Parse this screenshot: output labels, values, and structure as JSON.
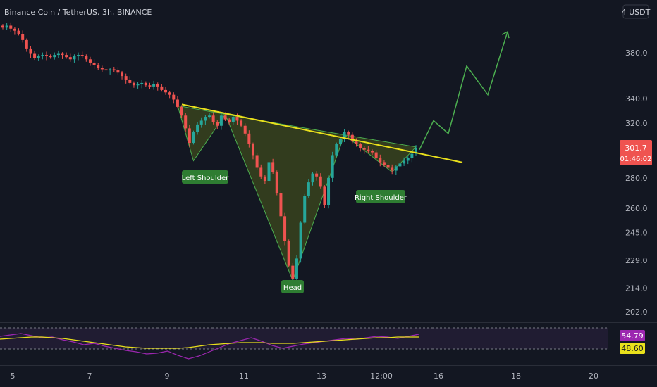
{
  "header": {
    "title": "Binance Coin / TetherUS, 3h, BINANCE",
    "currency": "4 USDT"
  },
  "price_tag": {
    "price": "301.7",
    "countdown": "01:46:02"
  },
  "rsi_tags": {
    "rsi": "54.79",
    "ma": "48.60"
  },
  "colors": {
    "background": "#131722",
    "up": "#26a69a",
    "down": "#ef5350",
    "neckline": "#e9e01c",
    "pattern_fill": "#3d4a1e",
    "pattern_stroke": "#4caf50",
    "projection": "#4caf50",
    "rsi_line": "#9c27b0",
    "rsi_ma": "#e9e01c",
    "label_bg": "#2e7d32"
  },
  "chart_data": {
    "type": "candlestick",
    "title": "Binance Coin / TetherUS, 3h, BINANCE",
    "y_axis": {
      "scale": "log",
      "ticks": [
        "380.0",
        "340.0",
        "320.0",
        "280.0",
        "260.0",
        "245.0",
        "229.0",
        "214.0",
        "202.0"
      ],
      "range": [
        195,
        420
      ]
    },
    "x_axis": {
      "ticks": [
        "5",
        "7",
        "9",
        "11",
        "13",
        "12:00",
        "16",
        "18",
        "20"
      ]
    },
    "series_closes_approx": [
      404,
      406,
      403,
      401,
      398,
      392,
      384,
      379,
      375,
      377,
      378,
      377,
      376,
      378,
      379,
      378,
      376,
      374,
      377,
      378,
      377,
      374,
      371,
      369,
      366,
      365,
      364,
      365,
      364,
      362,
      359,
      356,
      353,
      351,
      352,
      353,
      351,
      350,
      352,
      350,
      347,
      345,
      343,
      339,
      333,
      326,
      316,
      305,
      313,
      319,
      322,
      325,
      326,
      321,
      318,
      326,
      323,
      321,
      325,
      322,
      318,
      312,
      304,
      296,
      287,
      281,
      278,
      291,
      284,
      270,
      255,
      240,
      226,
      219,
      230,
      251,
      268,
      277,
      283,
      281,
      274,
      262,
      280,
      296,
      304,
      308,
      313,
      311,
      306,
      304,
      301,
      300,
      299,
      298,
      294,
      291,
      289,
      287,
      285,
      288,
      290,
      292,
      294,
      297,
      301
    ],
    "annotations": [
      "Left Shoulder",
      "Head",
      "Right Shoulder"
    ],
    "pattern": "inverse head and shoulders",
    "neckline": {
      "start_price": 335,
      "end_price": 302
    },
    "projection_path": [
      300,
      322,
      312,
      368,
      343,
      400
    ],
    "rsi": {
      "value": "54.79",
      "ma": "48.60",
      "levels": [
        70,
        30
      ]
    }
  }
}
